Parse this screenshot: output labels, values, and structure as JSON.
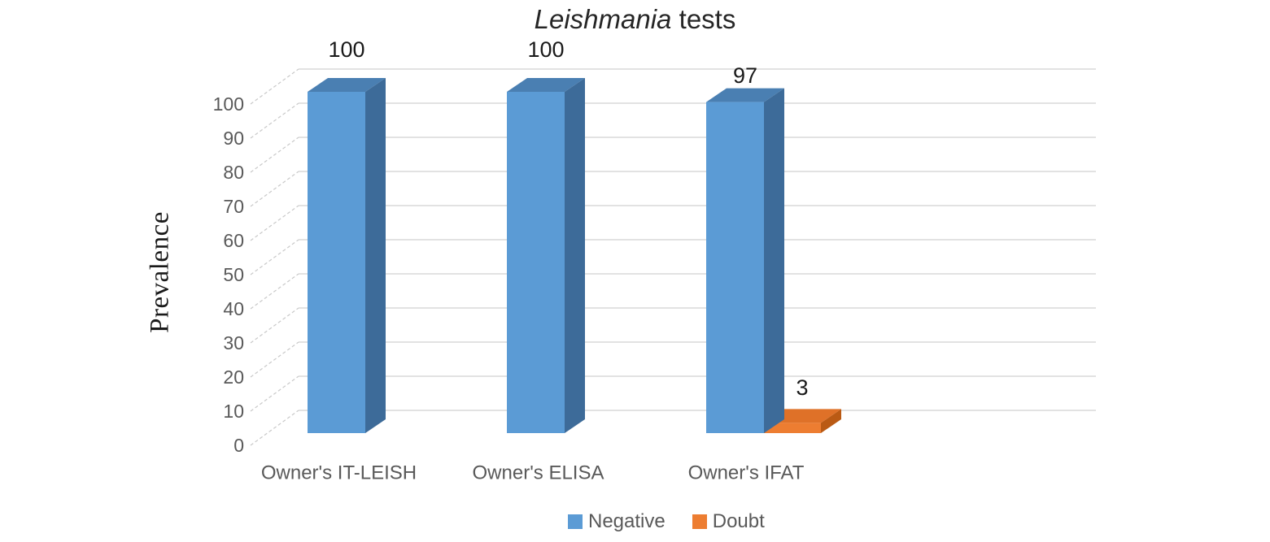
{
  "window": {
    "background": "#ffffff"
  },
  "title": {
    "italic_part": "Leishmania",
    "regular_part": "tests"
  },
  "chart_data": {
    "type": "bar",
    "variant": "3d-clustered-column",
    "title": "Leishmania tests",
    "categories": [
      "Owner's IT-LEISH",
      "Owner's ELISA",
      "Owner's IFAT"
    ],
    "series": [
      {
        "name": "Negative",
        "values": [
          100,
          100,
          97
        ],
        "data_labels": [
          "100",
          "100",
          "97"
        ],
        "color_front": "#5B9BD5",
        "color_top": "#4A7FB2",
        "color_side": "#3D6B99"
      },
      {
        "name": "Doubt",
        "values": [
          null,
          null,
          3
        ],
        "data_labels": [
          null,
          null,
          "3"
        ],
        "color_front": "#ED7D31",
        "color_top": "#DF7128",
        "color_side": "#BA5A14"
      }
    ],
    "xlabel": "",
    "ylabel": "Prevalence",
    "ylim": [
      0,
      100
    ],
    "ytick_step": 10,
    "ytick_labels": [
      "0",
      "10",
      "20",
      "30",
      "40",
      "50",
      "60",
      "70",
      "80",
      "90",
      "100"
    ],
    "grid": true,
    "legend_position": "bottom"
  },
  "legend": {
    "items": [
      {
        "label": "Negative",
        "color": "#5B9BD5"
      },
      {
        "label": "Doubt",
        "color": "#ED7D31"
      }
    ]
  },
  "styles": {
    "grid_color": "#d9d9d9",
    "tick_line_color": "#c9c9c9",
    "axis_text_color": "#595959",
    "label_text_color": "#1a1a1a",
    "title_color": "#262626"
  }
}
